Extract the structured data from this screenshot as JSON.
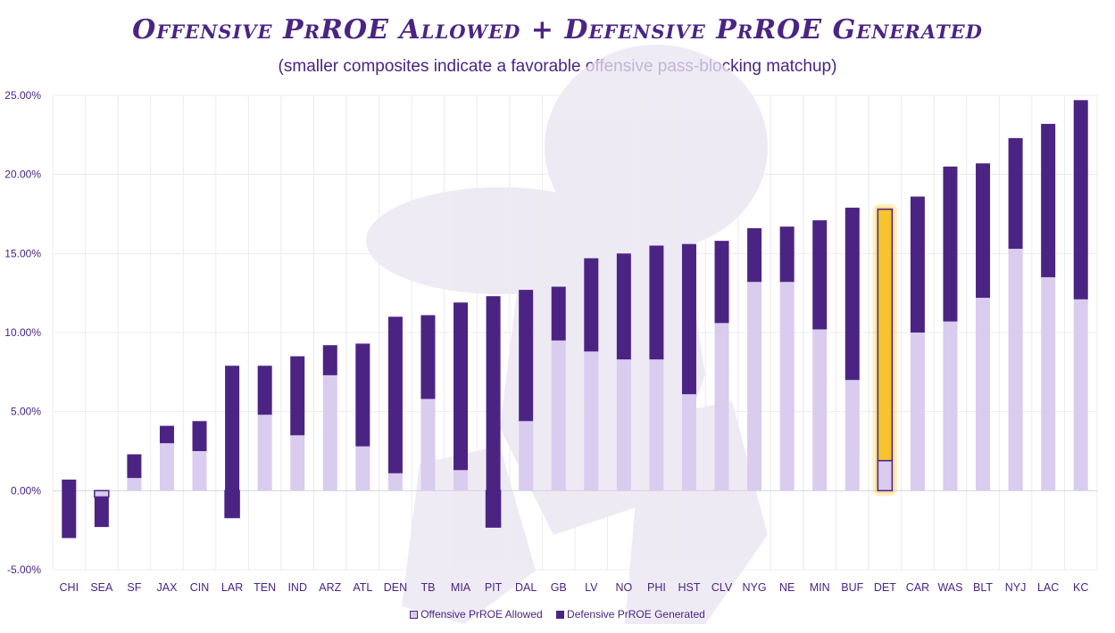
{
  "title": "Offensive PrROE Allowed + Defensive PrROE Generated",
  "subtitle": "(smaller composites indicate a favorable offensive pass-blocking matchup)",
  "colors": {
    "offensive": "#d9ccef",
    "defensive": "#4b2483",
    "outline": "#4b2483",
    "highlight": "#f7c32e",
    "text": "#4b2483",
    "grid": "#ececec"
  },
  "chart_data": {
    "type": "bar",
    "stacked": true,
    "categories": [
      "CHI",
      "SEA",
      "SF",
      "JAX",
      "CIN",
      "LAR",
      "TEN",
      "IND",
      "ARZ",
      "ATL",
      "DEN",
      "TB",
      "MIA",
      "PIT",
      "DAL",
      "GB",
      "LV",
      "NO",
      "PHI",
      "HST",
      "CLV",
      "NYG",
      "NE",
      "MIN",
      "BUF",
      "DET",
      "CAR",
      "WAS",
      "BLT",
      "NYJ",
      "LAC",
      "KC"
    ],
    "series": [
      {
        "name": "Offensive PrROE Allowed",
        "values": [
          0.7,
          -0.4,
          0.8,
          3.0,
          2.5,
          -1.7,
          4.8,
          3.5,
          7.3,
          2.8,
          1.1,
          5.8,
          1.3,
          -2.3,
          4.4,
          9.5,
          8.8,
          8.3,
          8.3,
          6.1,
          10.6,
          13.2,
          13.2,
          10.2,
          7.0,
          1.9,
          10.0,
          10.7,
          12.2,
          15.3,
          13.5,
          12.1
        ]
      },
      {
        "name": "Defensive PrROE Generated",
        "values": [
          -3.7,
          -1.9,
          1.5,
          1.1,
          1.9,
          9.6,
          3.1,
          5.0,
          1.9,
          6.5,
          9.9,
          5.3,
          10.6,
          14.6,
          8.3,
          3.4,
          5.9,
          6.7,
          7.2,
          9.5,
          5.2,
          3.4,
          3.5,
          6.9,
          10.9,
          15.9,
          8.6,
          9.8,
          8.5,
          7.0,
          9.7,
          12.6
        ]
      }
    ],
    "highlight_category": "DET",
    "ylim": [
      -5,
      25
    ],
    "yticks": [
      "-5.00%",
      "0.00%",
      "5.00%",
      "10.00%",
      "15.00%",
      "20.00%",
      "25.00%"
    ],
    "grid": true,
    "legend_position": "bottom",
    "xlabel": "",
    "ylabel": ""
  }
}
